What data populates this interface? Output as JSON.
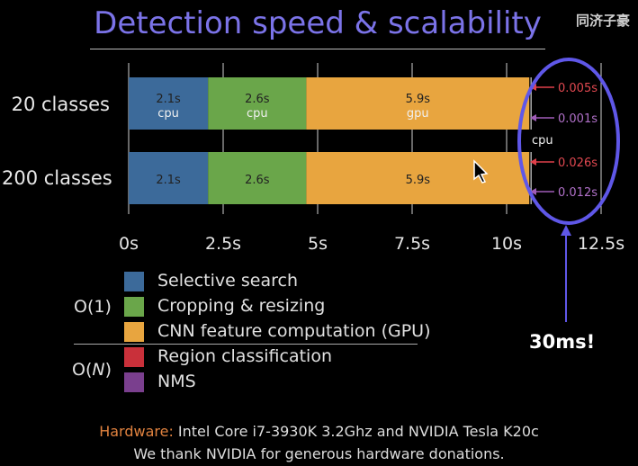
{
  "slide": {
    "title": "Detection speed & scalability",
    "watermark": "同济子豪",
    "callout": "30ms!",
    "footer": {
      "hardware_label": "Hardware:",
      "hardware_text": " Intel Core i7-3930K 3.2Ghz and NVIDIA Tesla K20c",
      "thanks": "We thank NVIDIA for generous hardware donations."
    },
    "complexity": {
      "constant": "O(1)",
      "linear_prefix": "O(",
      "linear_var": "N",
      "linear_suffix": ")"
    }
  },
  "colors": {
    "selective_search": "#3c6a9a",
    "cropping": "#6aa64a",
    "cnn": "#e8a53f",
    "region": "#c9303a",
    "nms": "#7a3f8e",
    "circle": "#5f57e8",
    "title": "#7b73e8"
  },
  "chart_data": {
    "type": "bar",
    "orientation": "horizontal",
    "stacked": true,
    "title": "Detection speed & scalability",
    "categories": [
      "20 classes",
      "200 classes"
    ],
    "x_ticks": [
      "0s",
      "2.5s",
      "5s",
      "7.5s",
      "10s",
      "12.5s"
    ],
    "xlim": [
      0,
      12.5
    ],
    "series": [
      {
        "name": "Selective search",
        "values": [
          2.1,
          2.1
        ],
        "labels": [
          "2.1s",
          "2.1s"
        ],
        "sublabels": [
          "cpu",
          ""
        ],
        "color": "#3c6a9a"
      },
      {
        "name": "Cropping & resizing",
        "values": [
          2.6,
          2.6
        ],
        "labels": [
          "2.6s",
          "2.6s"
        ],
        "sublabels": [
          "cpu",
          ""
        ],
        "color": "#6aa64a"
      },
      {
        "name": "CNN feature computation (GPU)",
        "values": [
          5.9,
          5.9
        ],
        "labels": [
          "5.9s",
          "5.9s"
        ],
        "sublabels": [
          "gpu",
          ""
        ],
        "color": "#e8a53f"
      },
      {
        "name": "Region classification",
        "values": [
          0.005,
          0.026
        ],
        "labels": [
          "0.005s",
          "0.026s"
        ],
        "color": "#c9303a"
      },
      {
        "name": "NMS",
        "values": [
          0.001,
          0.012
        ],
        "labels": [
          "0.001s",
          "0.012s"
        ],
        "color": "#7a3f8e"
      }
    ],
    "tail_note": "cpu",
    "legend_placement": "bottom-left"
  }
}
